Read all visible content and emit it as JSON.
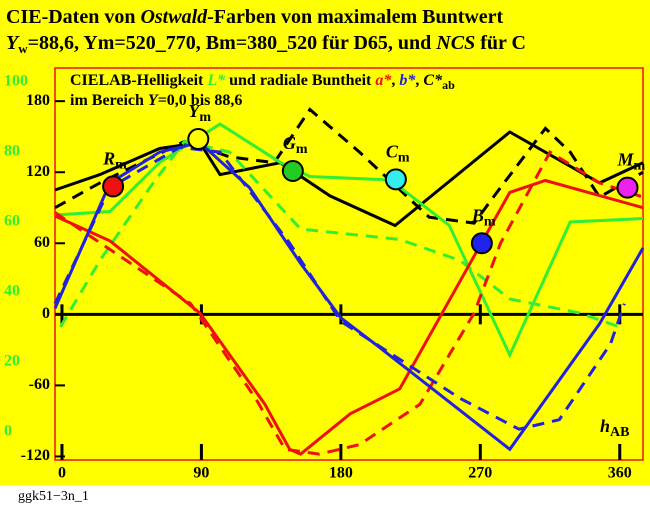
{
  "chart_data": {
    "type": "line",
    "title_parts": [
      "CIE-Daten von ",
      "Ostwald",
      "-Farben von maximalem Buntwert"
    ],
    "subtitle_parts": [
      "Y",
      "w",
      "=88,6, Ym=520_770, Bm=380_520 für D65, und ",
      "NCS",
      " für C"
    ],
    "annotation_line1": [
      "CIELAB-Helligkeit ",
      "L*",
      " und radiale Buntheit ",
      "a*",
      ", ",
      "b*",
      ", ",
      "C*",
      "ab"
    ],
    "annotation_line2": [
      "im Bereich ",
      "Y",
      "=0,0 bis 88,6"
    ],
    "x_label": [
      "h",
      "AB"
    ],
    "footer": "ggk51−3n_1",
    "xlim": [
      -4.5,
      375
    ],
    "xticks": [
      0,
      90,
      180,
      270,
      360
    ],
    "ylim": [
      -123,
      208
    ],
    "yticks": [
      -120,
      -60,
      0,
      60,
      120,
      180
    ],
    "y2lim": [
      -8,
      104
    ],
    "y2ticks": [
      0,
      20,
      40,
      60,
      80,
      100
    ],
    "series": [
      {
        "color": "#000000",
        "dashed": false,
        "x": [
          -4.5,
          24.5,
          63,
          89,
          102,
          141,
          173,
          215,
          289,
          347,
          375
        ],
        "values": [
          105,
          118,
          140,
          145,
          118,
          128,
          100,
          75,
          154,
          111,
          128
        ]
      },
      {
        "color": "#000000",
        "dashed": true,
        "x": [
          -4.5,
          24.5,
          79,
          108,
          137,
          160,
          192,
          237,
          266,
          283,
          312,
          328,
          347,
          375
        ],
        "values": [
          90,
          111,
          146,
          133,
          128,
          173,
          137,
          82,
          77,
          107,
          157,
          137,
          99,
          120
        ]
      },
      {
        "color": "#33ee33",
        "dashed": false,
        "axis": "y2",
        "x": [
          -4.5,
          31,
          63,
          102,
          141,
          160,
          212,
          250,
          289,
          328,
          375
        ],
        "values": [
          62,
          63,
          77,
          88,
          77,
          73,
          72,
          59,
          22,
          60,
          61
        ]
      },
      {
        "color": "#33ee33",
        "dashed": true,
        "axis": "y2",
        "x": [
          -1,
          24.5,
          57,
          79,
          108,
          154,
          218,
          257,
          289,
          334,
          360
        ],
        "values": [
          30,
          49,
          70,
          83,
          80,
          58,
          55,
          49,
          38,
          34,
          30
        ]
      },
      {
        "color": "#ee1111",
        "dashed": false,
        "x": [
          -4.5,
          31,
          89,
          131,
          147,
          154,
          186,
          218,
          289,
          312,
          375
        ],
        "values": [
          83,
          62,
          1,
          -76,
          -114,
          -118,
          -84,
          -63,
          103,
          113,
          90
        ]
      },
      {
        "color": "#ee1111",
        "dashed": true,
        "x": [
          -4.5,
          83,
          125,
          144,
          166,
          192,
          231,
          266,
          283,
          315,
          347,
          375
        ],
        "values": [
          86,
          9,
          -71,
          -114,
          -118,
          -110,
          -76,
          1,
          60,
          137,
          111,
          99
        ]
      },
      {
        "color": "#2222dd",
        "dashed": false,
        "x": [
          -4.5,
          31,
          63,
          89,
          121,
          154,
          180,
          206,
          289,
          347,
          375
        ],
        "values": [
          5,
          111,
          137,
          145,
          107,
          43,
          -3,
          -29,
          -114,
          -8,
          56
        ]
      },
      {
        "color": "#2222dd",
        "dashed": true,
        "x": [
          -4.5,
          31,
          76,
          102,
          147,
          180,
          257,
          295,
          321,
          354,
          363
        ],
        "values": [
          9,
          107,
          141,
          137,
          60,
          -6,
          -71,
          -97,
          -89,
          -25,
          9
        ]
      }
    ],
    "points": [
      {
        "label": "R",
        "sub": "m",
        "x": 33,
        "y": 108,
        "color": "#ee1111"
      },
      {
        "label": "Y",
        "sub": "m",
        "x": 88,
        "y": 148,
        "color": "#ffff00"
      },
      {
        "label": "G",
        "sub": "m",
        "x": 149,
        "y": 121,
        "color": "#22cc22"
      },
      {
        "label": "C",
        "sub": "m",
        "x": 215.5,
        "y": 114,
        "color": "#33eeee"
      },
      {
        "label": "B",
        "sub": "m",
        "x": 271,
        "y": 60,
        "color": "#2222ee"
      },
      {
        "label": "M",
        "sub": "m",
        "x": 365,
        "y": 107,
        "color": "#ee22ee"
      }
    ]
  }
}
